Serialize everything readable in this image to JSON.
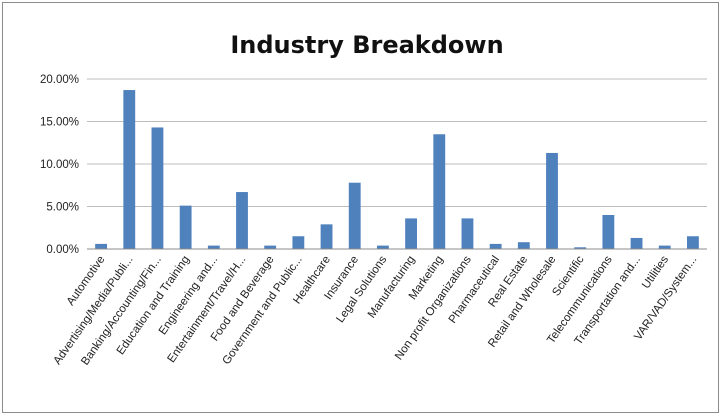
{
  "chart_data": {
    "type": "bar",
    "title": "Industry Breakdown",
    "xlabel": "",
    "ylabel": "",
    "ylim": [
      0,
      20
    ],
    "y_ticks": [
      "0.00%",
      "5.00%",
      "10.00%",
      "15.00%",
      "20.00%"
    ],
    "grid": true,
    "legend": "none",
    "bar_color": "#4f81bd",
    "categories": [
      "Automotive",
      "Advertising/Media/Publi...",
      "Banking/Accounting/Fin...",
      "Education and Training",
      "Engineering and...",
      "Entertainment/Travel/H...",
      "Food and Beverage",
      "Government and Public...",
      "Healthcare",
      "Insurance",
      "Legal Solutions",
      "Manufacturing",
      "Marketing",
      "Non profit Organizations",
      "Pharmaceutical",
      "Real Estate",
      "Retail and Wholesale",
      "Scientific",
      "Telecommunications",
      "Transportation and...",
      "Utilities",
      "VAR/VAD/System..."
    ],
    "values": [
      0.6,
      18.7,
      14.3,
      5.1,
      0.4,
      6.7,
      0.4,
      1.5,
      2.9,
      7.8,
      0.4,
      3.6,
      13.5,
      3.6,
      0.6,
      0.8,
      11.3,
      0.2,
      4.0,
      1.3,
      0.4,
      1.5
    ]
  }
}
